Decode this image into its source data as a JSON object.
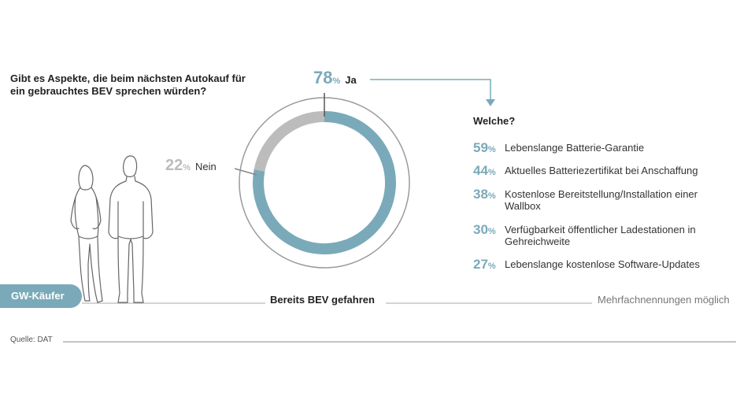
{
  "question": "Gibt es Aspekte, die beim nächsten Autokauf für ein gebrauchtes BEV sprechen würden?",
  "chart_data": {
    "type": "pie",
    "categories": [
      "Ja",
      "Nein"
    ],
    "values": [
      78,
      22
    ],
    "unit": "%",
    "colors": {
      "Ja": "#7aaab9",
      "Nein": "#bcbcbc"
    }
  },
  "yes": {
    "value": "78",
    "unit": "%",
    "label": "Ja"
  },
  "no": {
    "value": "22",
    "unit": "%",
    "label": "Nein"
  },
  "welche_title": "Welche?",
  "aspects": [
    {
      "value": "59",
      "unit": "%",
      "label": "Lebenslange Batterie-Garantie"
    },
    {
      "value": "44",
      "unit": "%",
      "label": "Aktuelles Batteriezertifikat bei Anschaffung"
    },
    {
      "value": "38",
      "unit": "%",
      "label": "Kostenlose Bereitstellung/Installation einer Wallbox"
    },
    {
      "value": "30",
      "unit": "%",
      "label": "Verfügbarkeit öffentlicher Ladestationen in Gehreichweite"
    },
    {
      "value": "27",
      "unit": "%",
      "label": "Lebenslange kostenlose Software-Updates"
    }
  ],
  "aspect_values": [
    59,
    44,
    38,
    30,
    27
  ],
  "gw_label": "GW-Käufer",
  "bev_label": "Bereits BEV gefahren",
  "mehr_label": "Mehrfachnennungen möglich",
  "source": "Quelle: DAT",
  "accent_color": "#7aaab9"
}
